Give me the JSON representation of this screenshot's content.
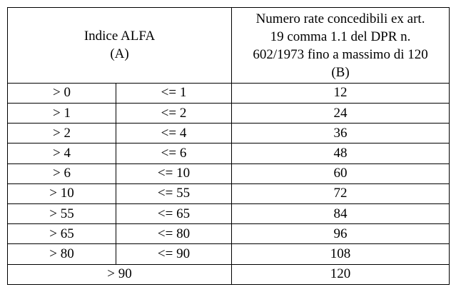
{
  "header": {
    "col_a_title": "Indice ALFA",
    "col_a_sub": "(A)",
    "col_b_line1": "Numero rate concedibili ex art.",
    "col_b_line2": "19 comma 1.1 del DPR n.",
    "col_b_line3": "602/1973 fino a massimo di 120",
    "col_b_sub": "(B)"
  },
  "rows": [
    {
      "lower": "> 0",
      "upper": "<= 1",
      "rate": "12"
    },
    {
      "lower": "> 1",
      "upper": "<= 2",
      "rate": "24"
    },
    {
      "lower": "> 2",
      "upper": "<= 4",
      "rate": "36"
    },
    {
      "lower": "> 4",
      "upper": "<= 6",
      "rate": "48"
    },
    {
      "lower": "> 6",
      "upper": "<= 10",
      "rate": "60"
    },
    {
      "lower": "> 10",
      "upper": "<= 55",
      "rate": "72"
    },
    {
      "lower": "> 55",
      "upper": "<= 65",
      "rate": "84"
    },
    {
      "lower": "> 65",
      "upper": "<= 80",
      "rate": "96"
    },
    {
      "lower": "> 80",
      "upper": "<= 90",
      "rate": "108"
    }
  ],
  "last_row": {
    "range": "> 90",
    "rate": "120"
  }
}
